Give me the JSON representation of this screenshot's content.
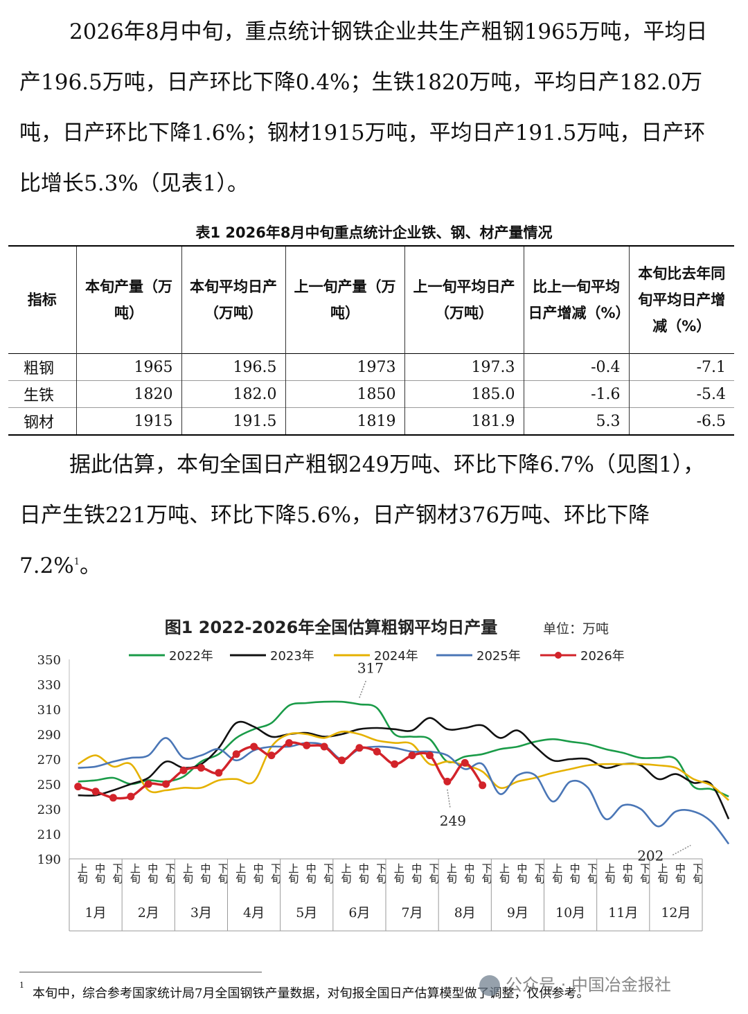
{
  "paragraph1": "2026年8月中旬，重点统计钢铁企业共生产粗钢1965万吨，平均日产196.5万吨，日产环比下降0.4%；生铁1820万吨，平均日产182.0万吨，日产环比下降1.6%；钢材1915万吨，平均日产191.5万吨，日产环比增长5.3%（见表1）。",
  "table": {
    "caption": "表1  2026年8月中旬重点统计企业铁、钢、材产量情况",
    "headers": [
      "指标",
      "本旬产量（万吨）",
      "本旬平均日产（万吨）",
      "上一旬产量（万吨）",
      "上一旬平均日产（万吨）",
      "比上一旬平均日产增减（%）",
      "本旬比去年同旬平均日产增减（%）"
    ],
    "rows": [
      [
        "粗钢",
        "1965",
        "196.5",
        "1973",
        "197.3",
        "-0.4",
        "-7.1"
      ],
      [
        "生铁",
        "1820",
        "182.0",
        "1850",
        "185.0",
        "-1.6",
        "-5.4"
      ],
      [
        "钢材",
        "1915",
        "191.5",
        "1819",
        "181.9",
        "5.3",
        "-6.5"
      ]
    ]
  },
  "paragraph2": "据此估算，本旬全国日产粗钢249万吨、环比下降6.7%（见图1），日产生铁221万吨、环比下降5.6%，日产钢材376万吨、环比下降7.2%",
  "paragraph2_sup": "1",
  "paragraph2_end": "。",
  "footnote": {
    "mark": "1",
    "text": "本旬中，综合参考国家统计局7月全国钢铁产量数据，对旬报全国日产估算模型做了调整，仅供参考。"
  },
  "watermark": "公众号 · 中国冶金报社",
  "chart_data": {
    "type": "line",
    "title": "图1 2022-2026年全国估算粗钢平均日产量",
    "unit": "单位：万吨",
    "ylim": [
      190,
      350
    ],
    "yticks": [
      190,
      210,
      230,
      250,
      270,
      290,
      310,
      330,
      350
    ],
    "tick_labels": [
      "上旬",
      "中旬",
      "下旬"
    ],
    "months": [
      "1月",
      "2月",
      "3月",
      "4月",
      "5月",
      "6月",
      "7月",
      "8月",
      "9月",
      "10月",
      "11月",
      "12月"
    ],
    "annotations": [
      {
        "text": "317",
        "x_index": 16,
        "value": 317
      },
      {
        "text": "249",
        "x_index": 21,
        "value": 249
      },
      {
        "text": "202",
        "x_index": 35,
        "value": 202
      }
    ],
    "series": [
      {
        "name": "2022年",
        "color": "#1a9b48",
        "values": [
          252,
          253,
          255,
          250,
          253,
          252,
          256,
          268,
          274,
          287,
          294,
          299,
          313,
          315,
          316,
          316,
          314,
          311,
          290,
          288,
          286,
          268,
          272,
          274,
          278,
          280,
          284,
          286,
          284,
          282,
          278,
          275,
          271,
          271,
          270,
          248,
          246,
          240
        ]
      },
      {
        "name": "2023年",
        "color": "#111111",
        "values": [
          241,
          241,
          245,
          250,
          255,
          268,
          263,
          266,
          279,
          299,
          296,
          288,
          290,
          291,
          288,
          290,
          294,
          295,
          294,
          293,
          303,
          294,
          295,
          297,
          287,
          293,
          280,
          269,
          270,
          270,
          263,
          266,
          265,
          254,
          258,
          251,
          250,
          222
        ]
      },
      {
        "name": "2024年",
        "color": "#e5b100",
        "values": [
          266,
          273,
          264,
          266,
          245,
          245,
          247,
          247,
          253,
          254,
          252,
          280,
          290,
          290,
          287,
          292,
          290,
          285,
          283,
          282,
          266,
          268,
          265,
          260,
          247,
          252,
          255,
          259,
          262,
          265,
          266,
          266,
          266,
          265,
          263,
          254,
          249,
          237
        ]
      },
      {
        "name": "2025年",
        "color": "#4a76b6",
        "values": [
          263,
          264,
          268,
          271,
          273,
          287,
          271,
          273,
          278,
          269,
          277,
          280,
          280,
          283,
          281,
          270,
          278,
          280,
          279,
          276,
          276,
          273,
          262,
          266,
          242,
          257,
          257,
          236,
          252,
          247,
          222,
          233,
          230,
          216,
          228,
          228,
          220,
          202
        ]
      },
      {
        "name": "2026年",
        "color": "#d2232a",
        "values": [
          248,
          244,
          239,
          240,
          250,
          250,
          261,
          263,
          259,
          274,
          280,
          273,
          283,
          281,
          280,
          269,
          279,
          276,
          266,
          273,
          273,
          252,
          267,
          249
        ]
      }
    ]
  }
}
